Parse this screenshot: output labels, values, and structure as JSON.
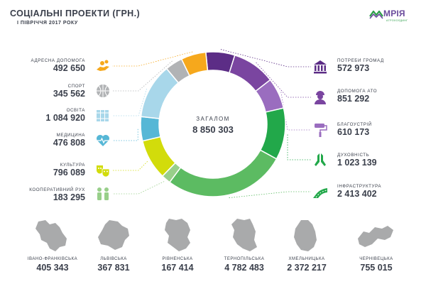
{
  "header": {
    "title": "СОЦІАЛЬНІ ПРОЕКТИ (ГРН.)",
    "subtitle": "І ПІВРІЧЧЯ 2017 РОКУ"
  },
  "brand": {
    "name": "МРІЯ",
    "tagline": "АГРОХОЛДИНГ"
  },
  "colors": {
    "text": "#3a3f4b",
    "brand_purple": "#6a4b9c",
    "brand_green": "#2a9d47",
    "map_gray": "#a9aaab",
    "leader_dotted": "#cfcfcf"
  },
  "chart_data": {
    "type": "pie",
    "donut": true,
    "title": "СОЦІАЛЬНІ ПРОЕКТИ (ГРН.)",
    "total_label": "ЗАГАЛОМ",
    "total_value": "8 850 303",
    "slices": [
      {
        "label": "ПОТРЕБИ ГРОМАД",
        "value": 572973,
        "display": "572 973",
        "color": "#5c2d86",
        "icon": "town-hall-icon",
        "side": "right"
      },
      {
        "label": "ДОПОМОГА АТО",
        "value": 851292,
        "display": "851 292",
        "color": "#7a45a0",
        "icon": "soldier-icon",
        "side": "right"
      },
      {
        "label": "БЛАГОУСТРІЙ",
        "value": 610173,
        "display": "610 173",
        "color": "#9a6dbf",
        "icon": "paint-roller-icon",
        "side": "right"
      },
      {
        "label": "ДУХОВНІСТЬ",
        "value": 1023139,
        "display": "1 023 139",
        "color": "#22a84a",
        "icon": "praying-hands-icon",
        "side": "right"
      },
      {
        "label": "ІНФРАСТРУКТУРА",
        "value": 2413402,
        "display": "2 413 402",
        "color": "#5cbb62",
        "icon": "road-icon",
        "side": "right"
      },
      {
        "label": "КООПЕРАТИВНИЙ РУХ",
        "value": 183295,
        "display": "183 295",
        "color": "#98cf8a",
        "icon": "two-people-icon",
        "side": "left"
      },
      {
        "label": "КУЛЬТУРА",
        "value": 796089,
        "display": "796 089",
        "color": "#d2dc0b",
        "icon": "theater-masks-icon",
        "side": "left"
      },
      {
        "label": "МЕДИЦИНА",
        "value": 476808,
        "display": "476 808",
        "color": "#56b7d6",
        "icon": "heart-pulse-icon",
        "side": "left"
      },
      {
        "label": "ОСВІТА",
        "value": 1084920,
        "display": "1 084 920",
        "color": "#a8d7ea",
        "icon": "books-icon",
        "side": "left"
      },
      {
        "label": "СПОРТ",
        "value": 345562,
        "display": "345 562",
        "color": "#b1b3b5",
        "icon": "ball-icon",
        "side": "left"
      },
      {
        "label": "АДРЕСНА ДОПОМОГА",
        "value": 492650,
        "display": "492 650",
        "color": "#f6a81c",
        "icon": "helping-hand-icon",
        "side": "left"
      }
    ]
  },
  "regions": [
    {
      "name": "ІВАНО-ФРАНКІВСЬКА",
      "value": "405 343"
    },
    {
      "name": "ЛЬВІВСЬКА",
      "value": "367 831"
    },
    {
      "name": "РІВНЕНСЬКА",
      "value": "167 414"
    },
    {
      "name": "ТЕРНОПІЛЬСЬКА",
      "value": "4 782 483"
    },
    {
      "name": "ХМЕЛЬНИЦЬКА",
      "value": "2 372 217"
    },
    {
      "name": "ЧЕРНІВЕЦЬКА",
      "value": "755 015"
    }
  ]
}
